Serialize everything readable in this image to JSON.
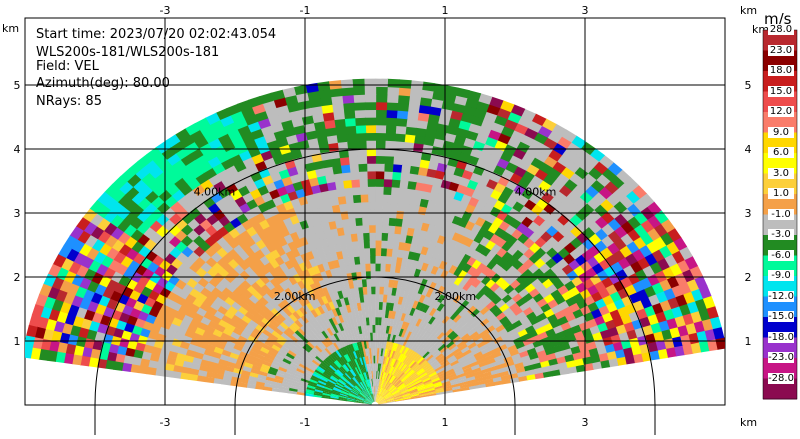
{
  "chart_data": {
    "type": "heatmap",
    "subtype": "radar-ppi-sector",
    "info": {
      "start_time": "Start time: 2023/07/20 02:02:43.054",
      "radar": "WLS200s-181/WLS200s-181",
      "field": "Field: VEL",
      "azimuth": "Azimuth(deg): 80.00",
      "nrays": "NRays: 85"
    },
    "axes": {
      "x_unit": "km",
      "y_unit": "km",
      "x_range": [
        -5.0,
        5.0
      ],
      "y_range": [
        0.0,
        5.6
      ],
      "x_ticks": [
        -3,
        -1,
        1,
        3
      ],
      "y_ticks": [
        1,
        2,
        3,
        4,
        5
      ],
      "grid": true
    },
    "range_rings": [
      {
        "radius_km": 2.0,
        "label": "2.00km"
      },
      {
        "radius_km": 4.0,
        "label": "4.00km"
      }
    ],
    "sector": {
      "start_deg": 10,
      "end_deg": 170,
      "max_range_km": 5.0
    },
    "colorbar": {
      "title": "m/s",
      "bins": [
        {
          "label": "28.0",
          "color": "#b8282e"
        },
        {
          "label": "23.0",
          "color": "#8b0000"
        },
        {
          "label": "18.0",
          "color": "#c81e1e"
        },
        {
          "label": "15.0",
          "color": "#ee4c4c"
        },
        {
          "label": "12.0",
          "color": "#fa7c6a"
        },
        {
          "label": "9.0",
          "color": "#ffd700"
        },
        {
          "label": "6.0",
          "color": "#ffff00"
        },
        {
          "label": "3.0",
          "color": "#fccf3a"
        },
        {
          "label": "1.0",
          "color": "#f4a048"
        },
        {
          "label": "-1.0",
          "color": "#bdbdbd"
        },
        {
          "label": "-3.0",
          "color": "#228b22"
        },
        {
          "label": "-6.0",
          "color": "#00fa9a"
        },
        {
          "label": "-9.0",
          "color": "#00e5ee"
        },
        {
          "label": "-12.0",
          "color": "#1e90ff"
        },
        {
          "label": "-15.0",
          "color": "#0000cd"
        },
        {
          "label": "-18.0",
          "color": "#9932cc"
        },
        {
          "label": "-23.0",
          "color": "#c71585"
        },
        {
          "label": "-28.0",
          "color": "#8b0a50"
        }
      ]
    }
  }
}
